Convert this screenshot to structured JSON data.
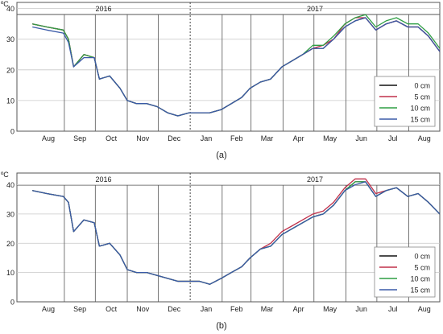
{
  "figure": {
    "charts": [
      {
        "panel_label": "(a)"
      },
      {
        "panel_label": "(b)"
      }
    ]
  },
  "chart_data": [
    {
      "type": "line",
      "title": "",
      "panel_label": "(a)",
      "ylabel": "ºC",
      "xlabel": "",
      "ylim": [
        0,
        42
      ],
      "yticks": [
        0,
        10,
        20,
        30,
        40
      ],
      "grid": true,
      "legend_position": "bottom-right",
      "year_labels": [
        "2016",
        "2017"
      ],
      "month_labels": [
        "Aug",
        "Sep",
        "Oct",
        "Nov",
        "Dec",
        "Jan",
        "Feb",
        "Mar",
        "Apr",
        "May",
        "Jun",
        "Jul",
        "Aug"
      ],
      "x": [
        "2016-08-01",
        "2016-08-15",
        "2016-08-31",
        "2016-09-05",
        "2016-09-10",
        "2016-09-20",
        "2016-09-30",
        "2016-10-05",
        "2016-10-15",
        "2016-10-25",
        "2016-11-01",
        "2016-11-10",
        "2016-11-20",
        "2016-11-30",
        "2016-12-10",
        "2016-12-20",
        "2016-12-31",
        "2017-01-10",
        "2017-01-20",
        "2017-01-31",
        "2017-02-10",
        "2017-02-20",
        "2017-02-28",
        "2017-03-10",
        "2017-03-20",
        "2017-03-31",
        "2017-04-10",
        "2017-04-20",
        "2017-04-30",
        "2017-05-10",
        "2017-05-20",
        "2017-05-31",
        "2017-06-10",
        "2017-06-20",
        "2017-06-30",
        "2017-07-10",
        "2017-07-20",
        "2017-07-31",
        "2017-08-10",
        "2017-08-20",
        "2017-08-31"
      ],
      "series": [
        {
          "name": "0 cm",
          "color": "#111111",
          "values": [
            35,
            34,
            33,
            30,
            21,
            25,
            24,
            17,
            18,
            14,
            10,
            9,
            9,
            8,
            6,
            5,
            6,
            6,
            6,
            7,
            9,
            11,
            14,
            16,
            17,
            21,
            23,
            25,
            27,
            27,
            30,
            34,
            36,
            37,
            33,
            35,
            36,
            34,
            34,
            31,
            26
          ]
        },
        {
          "name": "5 cm",
          "color": "#c0304a",
          "values": [
            35,
            34,
            33,
            30,
            21,
            25,
            24,
            17,
            18,
            14,
            10,
            9,
            9,
            8,
            6,
            5,
            6,
            6,
            6,
            7,
            9,
            11,
            14,
            16,
            17,
            21,
            23,
            25,
            27,
            28,
            30,
            35,
            37,
            37,
            33,
            35,
            36,
            34,
            34,
            31,
            26
          ]
        },
        {
          "name": "10 cm",
          "color": "#2f9e44",
          "values": [
            35,
            34,
            33,
            30,
            21,
            25,
            24,
            17,
            18,
            14,
            10,
            9,
            9,
            8,
            6,
            5,
            6,
            6,
            6,
            7,
            9,
            11,
            14,
            16,
            17,
            21,
            23,
            25,
            28,
            28,
            31,
            35,
            37,
            38,
            34,
            36,
            37,
            35,
            35,
            32,
            27
          ]
        },
        {
          "name": "15 cm",
          "color": "#3a5aa8",
          "values": [
            34,
            33,
            32,
            29,
            21,
            24,
            24,
            17,
            18,
            14,
            10,
            9,
            9,
            8,
            6,
            5,
            6,
            6,
            6,
            7,
            9,
            11,
            14,
            16,
            17,
            21,
            23,
            25,
            27,
            27,
            30,
            34,
            36,
            37,
            33,
            35,
            36,
            34,
            34,
            31,
            26
          ]
        }
      ]
    },
    {
      "type": "line",
      "title": "",
      "panel_label": "(b)",
      "ylabel": "ºC",
      "xlabel": "",
      "ylim": [
        0,
        44
      ],
      "yticks": [
        0,
        10,
        20,
        30,
        40
      ],
      "grid": true,
      "legend_position": "bottom-right",
      "year_labels": [
        "2016",
        "2017"
      ],
      "month_labels": [
        "Aug",
        "Sep",
        "Oct",
        "Nov",
        "Dec",
        "Jan",
        "Feb",
        "Mar",
        "Apr",
        "May",
        "Jun",
        "Jul",
        "Aug"
      ],
      "x": [
        "2016-08-01",
        "2016-08-15",
        "2016-08-31",
        "2016-09-05",
        "2016-09-10",
        "2016-09-20",
        "2016-09-30",
        "2016-10-05",
        "2016-10-15",
        "2016-10-25",
        "2016-11-01",
        "2016-11-10",
        "2016-11-20",
        "2016-11-30",
        "2016-12-10",
        "2016-12-20",
        "2016-12-31",
        "2017-01-10",
        "2017-01-20",
        "2017-01-31",
        "2017-02-10",
        "2017-02-20",
        "2017-02-28",
        "2017-03-10",
        "2017-03-20",
        "2017-03-31",
        "2017-04-10",
        "2017-04-20",
        "2017-04-30",
        "2017-05-10",
        "2017-05-20",
        "2017-05-31",
        "2017-06-10",
        "2017-06-20",
        "2017-06-30",
        "2017-07-10",
        "2017-07-20",
        "2017-07-31",
        "2017-08-10",
        "2017-08-20",
        "2017-08-31"
      ],
      "series": [
        {
          "name": "0 cm",
          "color": "#111111",
          "values": [
            38,
            37,
            36,
            34,
            24,
            28,
            27,
            19,
            20,
            16,
            11,
            10,
            10,
            9,
            8,
            7,
            7,
            7,
            6,
            8,
            10,
            12,
            15,
            18,
            19,
            23,
            25,
            27,
            29,
            30,
            33,
            38,
            41,
            41,
            36,
            38,
            39,
            36,
            37,
            34,
            30
          ]
        },
        {
          "name": "5 cm",
          "color": "#c0304a",
          "values": [
            38,
            37,
            36,
            34,
            24,
            28,
            27,
            19,
            20,
            16,
            11,
            10,
            10,
            9,
            8,
            7,
            7,
            7,
            6,
            8,
            10,
            12,
            15,
            18,
            20,
            24,
            26,
            28,
            30,
            31,
            34,
            39,
            42,
            42,
            37,
            38,
            39,
            36,
            37,
            34,
            30
          ]
        },
        {
          "name": "10 cm",
          "color": "#2f9e44",
          "values": [
            38,
            37,
            36,
            34,
            24,
            28,
            27,
            19,
            20,
            16,
            11,
            10,
            10,
            9,
            8,
            7,
            7,
            7,
            6,
            8,
            10,
            12,
            15,
            18,
            19,
            23,
            25,
            27,
            29,
            30,
            33,
            38,
            41,
            41,
            36,
            38,
            39,
            36,
            37,
            34,
            30
          ]
        },
        {
          "name": "15 cm",
          "color": "#3a5aa8",
          "values": [
            38,
            37,
            36,
            34,
            24,
            28,
            27,
            19,
            20,
            16,
            11,
            10,
            10,
            9,
            8,
            7,
            7,
            7,
            6,
            8,
            10,
            12,
            15,
            18,
            19,
            23,
            25,
            27,
            29,
            30,
            33,
            38,
            40,
            41,
            36,
            38,
            39,
            36,
            37,
            34,
            30
          ]
        }
      ]
    }
  ]
}
